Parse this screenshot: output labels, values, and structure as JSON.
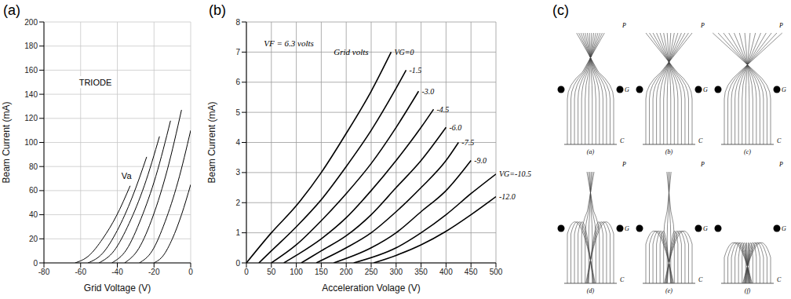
{
  "chart_data": [
    {
      "type": "line",
      "label": "(a)",
      "x_label": "Grid Voltage (V)",
      "y_label": "Beam Current (mA)",
      "xlim": [
        -80,
        0
      ],
      "xticks": [
        -80,
        -60,
        -40,
        -20,
        0
      ],
      "ylim": [
        0,
        200
      ],
      "yticks": [
        0,
        20,
        40,
        60,
        80,
        100,
        120,
        140,
        160,
        180,
        200
      ],
      "grid": true,
      "annotations": [
        {
          "text": "TRIODE",
          "x": -52,
          "y": 150
        },
        {
          "text": "Va",
          "x": -35,
          "y": 72
        }
      ],
      "series": [
        {
          "color": "#000000",
          "x": [
            -63,
            -55.5,
            -48,
            -40.5,
            -33
          ],
          "y": [
            0,
            6,
            20,
            39,
            64
          ]
        },
        {
          "color": "#000000",
          "x": [
            -56,
            -48,
            -40,
            -32,
            -24
          ],
          "y": [
            0,
            8,
            27,
            54,
            88
          ]
        },
        {
          "color": "#000000",
          "x": [
            -50,
            -41.8,
            -33.5,
            -25.3,
            -17
          ],
          "y": [
            0,
            10,
            33,
            64,
            105
          ]
        },
        {
          "color": "#000000",
          "x": [
            -43,
            -35,
            -27,
            -19,
            -11
          ],
          "y": [
            0,
            11,
            37,
            72,
            118
          ]
        },
        {
          "color": "#000000",
          "x": [
            -36,
            -28.3,
            -20.5,
            -12.8,
            -5
          ],
          "y": [
            0,
            12,
            39,
            77,
            127
          ]
        },
        {
          "color": "#000000",
          "x": [
            -28,
            -21,
            -14,
            -7,
            0
          ],
          "y": [
            0,
            10,
            34,
            67,
            110
          ]
        },
        {
          "color": "#000000",
          "x": [
            -20,
            -15,
            -10,
            -5,
            0
          ],
          "y": [
            0,
            6,
            20,
            40,
            65
          ]
        }
      ]
    },
    {
      "type": "line",
      "label": "(b)",
      "x_label": "Acceleration Volage (V)",
      "y_label": "Beam Current (mA)",
      "xlim": [
        0,
        500
      ],
      "xticks": [
        0,
        50,
        100,
        150,
        200,
        250,
        300,
        350,
        400,
        450,
        500
      ],
      "ylim": [
        0,
        8
      ],
      "yticks": [
        0,
        1,
        2,
        3,
        4,
        5,
        6,
        7,
        8
      ],
      "grid": true,
      "annotations": [
        {
          "text": "VF = 6.3 volts",
          "x": 35,
          "y": 7.3
        },
        {
          "text": "Grid volts",
          "x": 175,
          "y": 7.0
        }
      ],
      "series": [
        {
          "name": "VG=0",
          "color": "#000000",
          "x": [
            0,
            50,
            100,
            150,
            200,
            250,
            290
          ],
          "y": [
            0,
            1.0,
            1.9,
            3.0,
            4.3,
            5.7,
            7.0
          ]
        },
        {
          "name": "-1.5",
          "color": "#000000",
          "x": [
            25,
            50,
            100,
            150,
            200,
            250,
            300,
            320
          ],
          "y": [
            0,
            0.4,
            1.2,
            2.1,
            3.2,
            4.4,
            5.8,
            6.4
          ]
        },
        {
          "name": "-3.0",
          "color": "#000000",
          "x": [
            50,
            100,
            150,
            200,
            250,
            300,
            345
          ],
          "y": [
            0,
            0.6,
            1.4,
            2.3,
            3.3,
            4.5,
            5.7
          ]
        },
        {
          "name": "-4.5",
          "color": "#000000",
          "x": [
            75,
            100,
            150,
            200,
            250,
            300,
            350,
            375
          ],
          "y": [
            0,
            0.25,
            0.8,
            1.5,
            2.4,
            3.4,
            4.5,
            5.1
          ]
        },
        {
          "name": "-6.0",
          "color": "#000000",
          "x": [
            110,
            150,
            200,
            250,
            300,
            350,
            400
          ],
          "y": [
            0,
            0.4,
            0.9,
            1.6,
            2.5,
            3.4,
            4.5
          ]
        },
        {
          "name": "-7.5",
          "color": "#000000",
          "x": [
            140,
            200,
            250,
            300,
            350,
            400,
            425
          ],
          "y": [
            0,
            0.5,
            1.0,
            1.7,
            2.5,
            3.4,
            4.0
          ]
        },
        {
          "name": "-9.0",
          "color": "#000000",
          "x": [
            175,
            250,
            300,
            350,
            400,
            450
          ],
          "y": [
            0,
            0.5,
            1.0,
            1.7,
            2.4,
            3.4
          ]
        },
        {
          "name": "VG=-10.5",
          "color": "#000000",
          "x": [
            215,
            300,
            350,
            400,
            450,
            500
          ],
          "y": [
            0,
            0.5,
            1.0,
            1.6,
            2.3,
            2.95
          ]
        },
        {
          "name": "-12.0",
          "color": "#000000",
          "x": [
            255,
            300,
            350,
            400,
            450,
            500
          ],
          "y": [
            0,
            0.25,
            0.6,
            1.05,
            1.6,
            2.2
          ]
        }
      ]
    }
  ],
  "diagram": {
    "label": "(c)",
    "plate": "P",
    "grid": "G",
    "cathode": "C",
    "subpanels": [
      "(a)",
      "(b)",
      "(c)",
      "(d)",
      "(e)",
      "(f)"
    ]
  }
}
